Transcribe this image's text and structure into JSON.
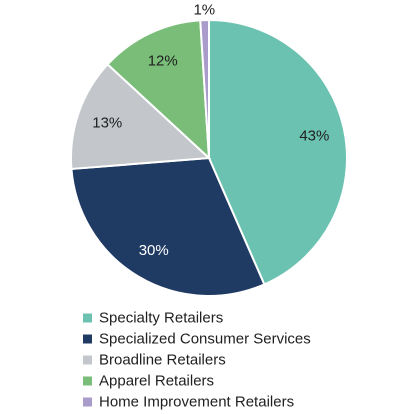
{
  "chart_data": {
    "type": "pie",
    "title": "",
    "start_angle_deg": 0,
    "direction": "clockwise",
    "legend_position": "bottom-left",
    "slices": [
      {
        "label": "Specialty Retailers",
        "value": 43,
        "value_label": "43%",
        "color": "#6cc2b0",
        "label_color": "#1f1f1f"
      },
      {
        "label": "Specialized Consumer Services",
        "value": 30,
        "value_label": "30%",
        "color": "#1f3a63",
        "label_color": "#ffffff"
      },
      {
        "label": "Broadline Retailers",
        "value": 13,
        "value_label": "13%",
        "color": "#c3c7cb",
        "label_color": "#1f1f1f"
      },
      {
        "label": "Apparel Retailers",
        "value": 12,
        "value_label": "12%",
        "color": "#79bd78",
        "label_color": "#1f1f1f"
      },
      {
        "label": "Home Improvement Retailers",
        "value": 1,
        "value_label": "1%",
        "color": "#a99ccb",
        "label_color": "#1f1f1f"
      }
    ]
  }
}
